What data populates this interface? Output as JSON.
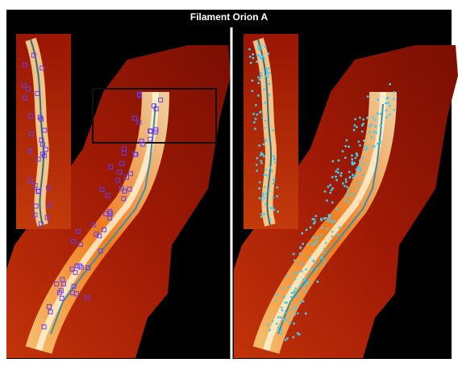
{
  "title": "Filament Orion A"
}
